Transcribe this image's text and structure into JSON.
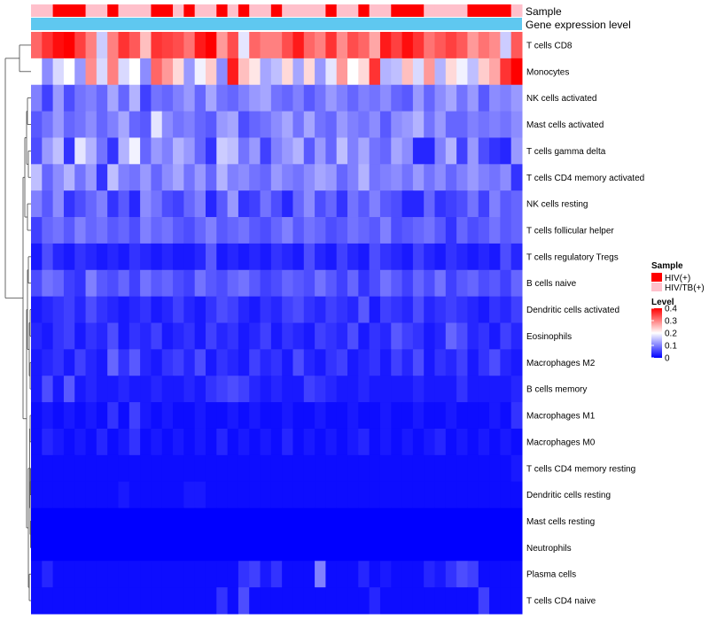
{
  "chart_data": {
    "type": "heatmap",
    "title": "",
    "annotation_rows": [
      {
        "name": "Sample",
        "label": "Sample"
      },
      {
        "name": "Gene expression level",
        "label": "Gene expression level",
        "color": "#5fc8f0"
      }
    ],
    "rows": [
      "T cells CD8",
      "Monocytes",
      "NK cells activated",
      "Mast cells activated",
      "T cells gamma delta",
      "T cells CD4 memory activated",
      "NK cells resting",
      "T cells follicular helper",
      "T cells regulatory  Tregs",
      "B cells naive",
      "Dendritic cells activated",
      "Eosinophils",
      "Macrophages M2",
      "B cells memory",
      "Macrophages M1",
      "Macrophages M0",
      "T cells CD4 memory resting",
      "Dendritic cells resting",
      "Mast cells resting",
      "Neutrophils",
      "Plasma cells",
      "T cells CD4 naive"
    ],
    "n_columns": 45,
    "sample_groups": [
      1,
      1,
      0,
      0,
      0,
      1,
      1,
      0,
      1,
      1,
      1,
      0,
      0,
      1,
      0,
      1,
      1,
      0,
      1,
      0,
      1,
      1,
      0,
      1,
      1,
      1,
      1,
      0,
      1,
      1,
      0,
      1,
      1,
      0,
      0,
      0,
      1,
      1,
      1,
      1,
      0,
      0,
      0,
      0,
      1
    ],
    "values": [
      [
        0.32,
        0.36,
        0.39,
        0.4,
        0.35,
        0.3,
        0.16,
        0.3,
        0.36,
        0.33,
        0.25,
        0.36,
        0.35,
        0.34,
        0.31,
        0.38,
        0.4,
        0.28,
        0.34,
        0.18,
        0.32,
        0.3,
        0.3,
        0.34,
        0.38,
        0.32,
        0.3,
        0.36,
        0.29,
        0.34,
        0.32,
        0.27,
        0.38,
        0.35,
        0.39,
        0.36,
        0.31,
        0.33,
        0.35,
        0.33,
        0.28,
        0.31,
        0.29,
        0.16,
        0.33
      ],
      [
        0.2,
        0.11,
        0.17,
        0.2,
        0.12,
        0.29,
        0.17,
        0.3,
        0.17,
        0.2,
        0.11,
        0.32,
        0.28,
        0.23,
        0.12,
        0.19,
        0.24,
        0.11,
        0.38,
        0.25,
        0.22,
        0.13,
        0.15,
        0.23,
        0.13,
        0.23,
        0.12,
        0.18,
        0.28,
        0.2,
        0.23,
        0.36,
        0.14,
        0.15,
        0.25,
        0.17,
        0.28,
        0.14,
        0.23,
        0.19,
        0.15,
        0.24,
        0.27,
        0.36,
        0.4
      ],
      [
        0.1,
        0.05,
        0.12,
        0.06,
        0.09,
        0.1,
        0.08,
        0.13,
        0.08,
        0.14,
        0.05,
        0.09,
        0.08,
        0.1,
        0.12,
        0.08,
        0.13,
        0.09,
        0.08,
        0.1,
        0.12,
        0.13,
        0.09,
        0.08,
        0.1,
        0.07,
        0.09,
        0.12,
        0.1,
        0.08,
        0.1,
        0.09,
        0.11,
        0.08,
        0.07,
        0.12,
        0.08,
        0.11,
        0.13,
        0.09,
        0.12,
        0.07,
        0.11,
        0.1,
        0.12
      ],
      [
        0.07,
        0.09,
        0.12,
        0.08,
        0.09,
        0.11,
        0.08,
        0.1,
        0.13,
        0.08,
        0.07,
        0.18,
        0.11,
        0.09,
        0.1,
        0.08,
        0.07,
        0.12,
        0.13,
        0.06,
        0.08,
        0.09,
        0.11,
        0.13,
        0.09,
        0.13,
        0.09,
        0.08,
        0.12,
        0.1,
        0.09,
        0.11,
        0.07,
        0.11,
        0.12,
        0.14,
        0.09,
        0.12,
        0.08,
        0.08,
        0.1,
        0.09,
        0.1,
        0.09,
        0.11
      ],
      [
        0.06,
        0.12,
        0.15,
        0.04,
        0.18,
        0.14,
        0.09,
        0.04,
        0.14,
        0.19,
        0.08,
        0.12,
        0.1,
        0.14,
        0.12,
        0.08,
        0.04,
        0.16,
        0.15,
        0.09,
        0.12,
        0.05,
        0.1,
        0.12,
        0.14,
        0.07,
        0.12,
        0.08,
        0.15,
        0.1,
        0.13,
        0.09,
        0.08,
        0.13,
        0.11,
        0.03,
        0.03,
        0.1,
        0.14,
        0.05,
        0.12,
        0.06,
        0.04,
        0.03,
        0.12
      ],
      [
        0.15,
        0.08,
        0.11,
        0.14,
        0.09,
        0.12,
        0.04,
        0.15,
        0.1,
        0.09,
        0.12,
        0.08,
        0.11,
        0.13,
        0.09,
        0.12,
        0.08,
        0.14,
        0.1,
        0.11,
        0.09,
        0.08,
        0.12,
        0.1,
        0.09,
        0.11,
        0.13,
        0.12,
        0.08,
        0.1,
        0.14,
        0.09,
        0.1,
        0.11,
        0.09,
        0.12,
        0.09,
        0.11,
        0.08,
        0.1,
        0.12,
        0.1,
        0.09,
        0.11,
        0.04
      ],
      [
        0.1,
        0.07,
        0.11,
        0.04,
        0.06,
        0.08,
        0.1,
        0.04,
        0.07,
        0.03,
        0.11,
        0.09,
        0.06,
        0.05,
        0.08,
        0.1,
        0.03,
        0.07,
        0.12,
        0.04,
        0.05,
        0.09,
        0.06,
        0.03,
        0.08,
        0.11,
        0.06,
        0.08,
        0.04,
        0.09,
        0.07,
        0.1,
        0.07,
        0.06,
        0.03,
        0.03,
        0.08,
        0.04,
        0.05,
        0.06,
        0.09,
        0.05,
        0.1,
        0.07,
        0.08
      ],
      [
        0.05,
        0.08,
        0.09,
        0.07,
        0.1,
        0.08,
        0.09,
        0.07,
        0.08,
        0.06,
        0.1,
        0.08,
        0.09,
        0.07,
        0.06,
        0.08,
        0.1,
        0.07,
        0.08,
        0.09,
        0.07,
        0.06,
        0.08,
        0.1,
        0.07,
        0.09,
        0.08,
        0.06,
        0.07,
        0.09,
        0.08,
        0.07,
        0.1,
        0.06,
        0.07,
        0.08,
        0.09,
        0.07,
        0.04,
        0.08,
        0.06,
        0.07,
        0.09,
        0.07,
        0.08
      ],
      [
        0.02,
        0.06,
        0.03,
        0.02,
        0.04,
        0.03,
        0.02,
        0.03,
        0.02,
        0.04,
        0.03,
        0.02,
        0.03,
        0.02,
        0.02,
        0.03,
        0.07,
        0.02,
        0.03,
        0.02,
        0.03,
        0.02,
        0.04,
        0.03,
        0.02,
        0.06,
        0.03,
        0.02,
        0.05,
        0.03,
        0.02,
        0.06,
        0.04,
        0.03,
        0.02,
        0.05,
        0.03,
        0.02,
        0.04,
        0.03,
        0.02,
        0.03,
        0.02,
        0.06,
        0.03
      ],
      [
        0.06,
        0.09,
        0.08,
        0.05,
        0.04,
        0.1,
        0.07,
        0.06,
        0.08,
        0.05,
        0.09,
        0.07,
        0.08,
        0.06,
        0.05,
        0.09,
        0.07,
        0.06,
        0.08,
        0.09,
        0.07,
        0.05,
        0.06,
        0.08,
        0.07,
        0.06,
        0.09,
        0.07,
        0.05,
        0.08,
        0.04,
        0.06,
        0.09,
        0.07,
        0.05,
        0.08,
        0.06,
        0.09,
        0.05,
        0.07,
        0.08,
        0.06,
        0.07,
        0.05,
        0.08
      ],
      [
        0.02,
        0.03,
        0.04,
        0.05,
        0.03,
        0.06,
        0.04,
        0.03,
        0.02,
        0.03,
        0.04,
        0.02,
        0.03,
        0.05,
        0.03,
        0.02,
        0.04,
        0.06,
        0.05,
        0.03,
        0.02,
        0.04,
        0.03,
        0.05,
        0.06,
        0.04,
        0.03,
        0.05,
        0.04,
        0.03,
        0.07,
        0.02,
        0.05,
        0.04,
        0.03,
        0.06,
        0.03,
        0.04,
        0.05,
        0.04,
        0.03,
        0.02,
        0.04,
        0.03,
        0.05
      ],
      [
        0.03,
        0.02,
        0.04,
        0.05,
        0.02,
        0.04,
        0.03,
        0.06,
        0.02,
        0.04,
        0.03,
        0.05,
        0.02,
        0.03,
        0.04,
        0.02,
        0.05,
        0.03,
        0.04,
        0.02,
        0.03,
        0.05,
        0.02,
        0.04,
        0.03,
        0.02,
        0.05,
        0.04,
        0.03,
        0.06,
        0.02,
        0.04,
        0.03,
        0.07,
        0.05,
        0.04,
        0.02,
        0.03,
        0.08,
        0.06,
        0.03,
        0.04,
        0.02,
        0.05,
        0.03
      ],
      [
        0.02,
        0.03,
        0.04,
        0.02,
        0.05,
        0.03,
        0.02,
        0.08,
        0.04,
        0.07,
        0.03,
        0.02,
        0.04,
        0.05,
        0.03,
        0.06,
        0.02,
        0.04,
        0.03,
        0.02,
        0.05,
        0.03,
        0.04,
        0.02,
        0.06,
        0.03,
        0.02,
        0.04,
        0.05,
        0.02,
        0.03,
        0.04,
        0.02,
        0.05,
        0.03,
        0.06,
        0.02,
        0.04,
        0.03,
        0.05,
        0.02,
        0.04,
        0.06,
        0.03,
        0.02
      ],
      [
        0.02,
        0.06,
        0.02,
        0.07,
        0.02,
        0.03,
        0.02,
        0.02,
        0.03,
        0.02,
        0.02,
        0.03,
        0.02,
        0.02,
        0.03,
        0.02,
        0.04,
        0.05,
        0.06,
        0.05,
        0.03,
        0.02,
        0.03,
        0.02,
        0.02,
        0.05,
        0.04,
        0.03,
        0.02,
        0.02,
        0.03,
        0.02,
        0.02,
        0.02,
        0.02,
        0.03,
        0.02,
        0.02,
        0.02,
        0.04,
        0.02,
        0.02,
        0.02,
        0.02,
        0.03
      ],
      [
        0.01,
        0.02,
        0.01,
        0.02,
        0.01,
        0.02,
        0.01,
        0.04,
        0.01,
        0.05,
        0.02,
        0.01,
        0.02,
        0.01,
        0.01,
        0.02,
        0.01,
        0.01,
        0.02,
        0.01,
        0.02,
        0.01,
        0.01,
        0.02,
        0.01,
        0.01,
        0.02,
        0.01,
        0.01,
        0.02,
        0.01,
        0.01,
        0.02,
        0.01,
        0.01,
        0.02,
        0.01,
        0.01,
        0.02,
        0.01,
        0.01,
        0.01,
        0.02,
        0.01,
        0.04
      ],
      [
        0.01,
        0.03,
        0.02,
        0.01,
        0.02,
        0.01,
        0.03,
        0.01,
        0.02,
        0.04,
        0.01,
        0.02,
        0.01,
        0.02,
        0.01,
        0.02,
        0.01,
        0.03,
        0.01,
        0.02,
        0.01,
        0.02,
        0.01,
        0.03,
        0.01,
        0.02,
        0.01,
        0.02,
        0.01,
        0.02,
        0.03,
        0.01,
        0.02,
        0.01,
        0.02,
        0.01,
        0.02,
        0.03,
        0.01,
        0.02,
        0.01,
        0.02,
        0.01,
        0.02,
        0.01
      ],
      [
        0.01,
        0.01,
        0.01,
        0.01,
        0.01,
        0.01,
        0.01,
        0.01,
        0.01,
        0.01,
        0.01,
        0.01,
        0.01,
        0.01,
        0.01,
        0.01,
        0.01,
        0.01,
        0.01,
        0.01,
        0.01,
        0.01,
        0.01,
        0.01,
        0.01,
        0.01,
        0.01,
        0.01,
        0.01,
        0.01,
        0.01,
        0.01,
        0.01,
        0.01,
        0.01,
        0.01,
        0.01,
        0.01,
        0.01,
        0.01,
        0.01,
        0.01,
        0.01,
        0.01,
        0.02
      ],
      [
        0.01,
        0.01,
        0.01,
        0.01,
        0.01,
        0.01,
        0.01,
        0.01,
        0.02,
        0.01,
        0.01,
        0.01,
        0.01,
        0.01,
        0.02,
        0.02,
        0.01,
        0.01,
        0.01,
        0.01,
        0.01,
        0.01,
        0.01,
        0.01,
        0.01,
        0.01,
        0.01,
        0.01,
        0.01,
        0.01,
        0.01,
        0.01,
        0.01,
        0.01,
        0.01,
        0.01,
        0.01,
        0.01,
        0.01,
        0.01,
        0.01,
        0.01,
        0.01,
        0.01,
        0.01
      ],
      [
        0,
        0,
        0,
        0,
        0,
        0,
        0,
        0,
        0,
        0,
        0,
        0,
        0,
        0,
        0,
        0,
        0,
        0,
        0,
        0,
        0,
        0,
        0,
        0,
        0,
        0,
        0,
        0,
        0,
        0,
        0,
        0,
        0,
        0,
        0,
        0,
        0,
        0,
        0,
        0,
        0,
        0,
        0,
        0,
        0
      ],
      [
        0,
        0,
        0,
        0,
        0,
        0,
        0,
        0,
        0,
        0,
        0,
        0,
        0,
        0,
        0,
        0,
        0,
        0,
        0,
        0,
        0,
        0,
        0,
        0,
        0,
        0,
        0,
        0,
        0,
        0,
        0,
        0,
        0,
        0,
        0,
        0,
        0,
        0,
        0,
        0,
        0,
        0,
        0,
        0,
        0
      ],
      [
        0.01,
        0.03,
        0.01,
        0.01,
        0.01,
        0.01,
        0.01,
        0.01,
        0.01,
        0.01,
        0.01,
        0.01,
        0.01,
        0.01,
        0.01,
        0.01,
        0.01,
        0.01,
        0.01,
        0.04,
        0.05,
        0.02,
        0.04,
        0.01,
        0.01,
        0.01,
        0.1,
        0.01,
        0.01,
        0.01,
        0.03,
        0.01,
        0.02,
        0.01,
        0.01,
        0.01,
        0.03,
        0.02,
        0.04,
        0.06,
        0.05,
        0.01,
        0.01,
        0.01,
        0.01
      ],
      [
        0.01,
        0.01,
        0.01,
        0.01,
        0.01,
        0.01,
        0.01,
        0.01,
        0.01,
        0.01,
        0.01,
        0.01,
        0.01,
        0.01,
        0.01,
        0.01,
        0.01,
        0.04,
        0.01,
        0.06,
        0.01,
        0.01,
        0.01,
        0.01,
        0.01,
        0.01,
        0.01,
        0.01,
        0.01,
        0.01,
        0.01,
        0.03,
        0.01,
        0.01,
        0.01,
        0.01,
        0.01,
        0.01,
        0.01,
        0.01,
        0.01,
        0.05,
        0.01,
        0.01,
        0.01
      ]
    ],
    "legend": {
      "sample": {
        "title": "Sample",
        "entries": [
          {
            "label": "HIV(+)",
            "color": "#ff0000"
          },
          {
            "label": "HIV/TB(+)",
            "color": "#ffc0cb"
          }
        ]
      },
      "level": {
        "title": "Level",
        "min": 0,
        "max": 0.4,
        "ticks": [
          "0",
          "0.1",
          "0.2",
          "0.3",
          "0.4"
        ],
        "colors": [
          "#0000ff",
          "#ffffff",
          "#ff0000"
        ]
      }
    },
    "dendrogram": [
      {
        "label": "row-dendrogram"
      }
    ]
  }
}
